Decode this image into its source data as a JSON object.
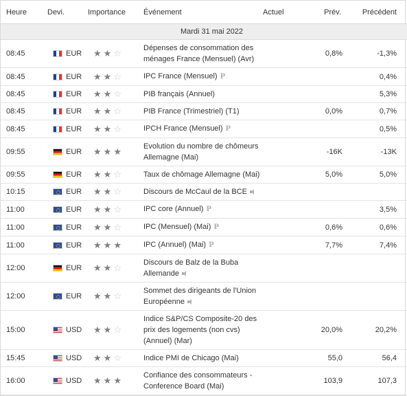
{
  "header": {
    "time": "Heure",
    "currency": "Devi.",
    "importance": "Importance",
    "event": "Événement",
    "actual": "Actuel",
    "forecast": "Prév.",
    "previous": "Précédent"
  },
  "date_label": "Mardi 31 mai 2022",
  "colors": {
    "star_on": "#7f7f7f",
    "star_off": "#c9c9c9",
    "date_row_bg": "#eeeeee"
  },
  "events": [
    {
      "time": "08:45",
      "flag": "fr",
      "currency": "EUR",
      "stars": 2,
      "event": "Dépenses de consommation des ménages France (Mensuel) (Avr)",
      "tag": "",
      "actual": "",
      "forecast": "0,8%",
      "previous": "-1,3%"
    },
    {
      "time": "08:45",
      "flag": "fr",
      "currency": "EUR",
      "stars": 2,
      "event": "IPC France (Mensuel)",
      "tag": "prelim-icon",
      "actual": "",
      "forecast": "",
      "previous": "0,4%"
    },
    {
      "time": "08:45",
      "flag": "fr",
      "currency": "EUR",
      "stars": 2,
      "event": "PIB français (Annuel)",
      "tag": "",
      "actual": "",
      "forecast": "",
      "previous": "5,3%"
    },
    {
      "time": "08:45",
      "flag": "fr",
      "currency": "EUR",
      "stars": 2,
      "event": "PIB France (Trimestriel) (T1)",
      "tag": "",
      "actual": "",
      "forecast": "0,0%",
      "previous": "0,7%"
    },
    {
      "time": "08:45",
      "flag": "fr",
      "currency": "EUR",
      "stars": 2,
      "event": "IPCH France (Mensuel)",
      "tag": "prelim-icon",
      "actual": "",
      "forecast": "",
      "previous": "0,5%"
    },
    {
      "time": "09:55",
      "flag": "de",
      "currency": "EUR",
      "stars": 3,
      "event": "Evolution du nombre de chômeurs Allemagne (Mai)",
      "tag": "",
      "actual": "",
      "forecast": "-16K",
      "previous": "-13K"
    },
    {
      "time": "09:55",
      "flag": "de",
      "currency": "EUR",
      "stars": 2,
      "event": "Taux de chômage Allemagne (Mai)",
      "tag": "",
      "actual": "",
      "forecast": "5,0%",
      "previous": "5,0%"
    },
    {
      "time": "10:15",
      "flag": "eu",
      "currency": "EUR",
      "stars": 2,
      "event": "Discours de McCaul de la BCE",
      "tag": "speaker-icon",
      "actual": "",
      "forecast": "",
      "previous": ""
    },
    {
      "time": "11:00",
      "flag": "eu",
      "currency": "EUR",
      "stars": 2,
      "event": "IPC core (Annuel)",
      "tag": "prelim-icon",
      "actual": "",
      "forecast": "",
      "previous": "3,5%"
    },
    {
      "time": "11:00",
      "flag": "eu",
      "currency": "EUR",
      "stars": 2,
      "event": "IPC (Mensuel) (Mai)",
      "tag": "prelim-icon",
      "actual": "",
      "forecast": "0,6%",
      "previous": "0,6%"
    },
    {
      "time": "11:00",
      "flag": "eu",
      "currency": "EUR",
      "stars": 3,
      "event": "IPC (Annuel) (Mai)",
      "tag": "prelim-icon",
      "actual": "",
      "forecast": "7,7%",
      "previous": "7,4%"
    },
    {
      "time": "12:00",
      "flag": "de",
      "currency": "EUR",
      "stars": 2,
      "event": "Discours de Balz de la Buba Allemande",
      "tag": "speaker-icon",
      "actual": "",
      "forecast": "",
      "previous": ""
    },
    {
      "time": "12:00",
      "flag": "eu",
      "currency": "EUR",
      "stars": 2,
      "event": "Sommet des dirigeants de l'Union Européenne",
      "tag": "speaker-icon",
      "actual": "",
      "forecast": "",
      "previous": ""
    },
    {
      "time": "15:00",
      "flag": "us",
      "currency": "USD",
      "stars": 2,
      "event": "Indice S&P/CS Composite-20 des prix des logements (non cvs) (Annuel) (Mar)",
      "tag": "",
      "actual": "",
      "forecast": "20,0%",
      "previous": "20,2%"
    },
    {
      "time": "15:45",
      "flag": "us",
      "currency": "USD",
      "stars": 2,
      "event": "Indice PMI de Chicago (Mai)",
      "tag": "",
      "actual": "",
      "forecast": "55,0",
      "previous": "56,4"
    },
    {
      "time": "16:00",
      "flag": "us",
      "currency": "USD",
      "stars": 3,
      "event": "Confiance des consommateurs - Conference Board (Mai)",
      "tag": "",
      "actual": "",
      "forecast": "103,9",
      "previous": "107,3"
    }
  ]
}
